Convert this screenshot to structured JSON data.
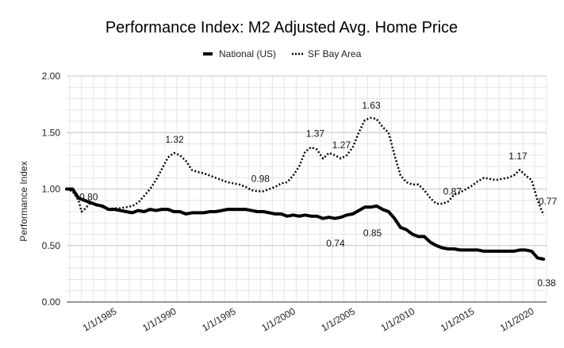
{
  "chart_data": {
    "type": "line",
    "title": "Performance Index: M2 Adjusted Avg. Home Price",
    "xlabel": "",
    "ylabel": "Performance Index",
    "ylim": [
      0,
      2
    ],
    "yticks": [
      "0.00",
      "0.50",
      "1.00",
      "1.50",
      "2.00"
    ],
    "ytick_values": [
      0,
      0.5,
      1,
      1.5,
      2
    ],
    "xlim": [
      1980.75,
      2021
    ],
    "xticks": [
      "1/1/1985",
      "1/1/1990",
      "1/1/1995",
      "1/1/2000",
      "1/1/2005",
      "1/1/2010",
      "1/1/2015",
      "1/1/2020"
    ],
    "xtick_values": [
      1985,
      1990,
      1995,
      2000,
      2005,
      2010,
      2015,
      2020
    ],
    "grid": true,
    "legend_position": "top-center",
    "series": [
      {
        "name": "National (US)",
        "style": "solid",
        "color": "#000000",
        "x": [
          1980.75,
          1981.25,
          1981.75,
          1982.25,
          1982.75,
          1983.25,
          1983.75,
          1984.25,
          1984.75,
          1985.25,
          1985.75,
          1986.25,
          1986.75,
          1987.25,
          1987.75,
          1988.25,
          1988.75,
          1989.25,
          1989.75,
          1990.25,
          1990.75,
          1991.25,
          1991.75,
          1992.25,
          1992.75,
          1993.25,
          1993.75,
          1994.25,
          1994.75,
          1995.25,
          1995.75,
          1996.25,
          1996.75,
          1997.25,
          1997.75,
          1998.25,
          1998.75,
          1999.25,
          1999.75,
          2000.25,
          2000.75,
          2001.25,
          2001.75,
          2002.25,
          2002.75,
          2003.25,
          2003.75,
          2004.25,
          2004.75,
          2005.25,
          2005.75,
          2006.25,
          2006.75,
          2007.25,
          2007.75,
          2008.25,
          2008.75,
          2009.25,
          2009.75,
          2010.25,
          2010.75,
          2011.25,
          2011.75,
          2012.25,
          2012.75,
          2013.25,
          2013.75,
          2014.25,
          2014.75,
          2015.25,
          2015.75,
          2016.25,
          2016.75,
          2017.25,
          2017.75,
          2018.25,
          2018.75,
          2019.25,
          2019.75,
          2020.25,
          2020.75
        ],
        "values": [
          1.0,
          1.0,
          0.92,
          0.9,
          0.88,
          0.86,
          0.85,
          0.82,
          0.82,
          0.81,
          0.8,
          0.79,
          0.81,
          0.8,
          0.82,
          0.81,
          0.82,
          0.82,
          0.8,
          0.8,
          0.78,
          0.79,
          0.79,
          0.79,
          0.8,
          0.8,
          0.81,
          0.82,
          0.82,
          0.82,
          0.82,
          0.81,
          0.8,
          0.8,
          0.79,
          0.78,
          0.78,
          0.76,
          0.77,
          0.76,
          0.77,
          0.76,
          0.76,
          0.74,
          0.75,
          0.74,
          0.75,
          0.77,
          0.78,
          0.81,
          0.84,
          0.84,
          0.85,
          0.82,
          0.8,
          0.74,
          0.66,
          0.64,
          0.6,
          0.58,
          0.58,
          0.53,
          0.5,
          0.48,
          0.47,
          0.47,
          0.46,
          0.46,
          0.46,
          0.46,
          0.45,
          0.45,
          0.45,
          0.45,
          0.45,
          0.45,
          0.46,
          0.46,
          0.45,
          0.39,
          0.38
        ]
      },
      {
        "name": "SF Bay Area",
        "style": "dotted",
        "color": "#000000",
        "x": [
          1980.75,
          1981.25,
          1981.75,
          1982.0,
          1982.25,
          1982.75,
          1983.25,
          1983.75,
          1984.25,
          1984.75,
          1985.25,
          1985.75,
          1986.25,
          1986.75,
          1987.25,
          1987.75,
          1988.25,
          1988.75,
          1989.25,
          1989.75,
          1990.25,
          1990.75,
          1991.25,
          1991.75,
          1992.25,
          1992.75,
          1993.25,
          1993.75,
          1994.25,
          1994.75,
          1995.25,
          1995.75,
          1996.25,
          1996.75,
          1997.25,
          1997.75,
          1998.25,
          1998.75,
          1999.25,
          1999.75,
          2000.25,
          2000.75,
          2001.25,
          2001.75,
          2002.25,
          2002.75,
          2003.25,
          2003.75,
          2004.25,
          2004.75,
          2005.25,
          2005.75,
          2006.25,
          2006.75,
          2007.25,
          2007.75,
          2008.25,
          2008.75,
          2009.25,
          2009.75,
          2010.25,
          2010.75,
          2011.25,
          2011.75,
          2012.25,
          2012.75,
          2013.25,
          2013.75,
          2014.25,
          2014.75,
          2015.25,
          2015.75,
          2016.25,
          2016.75,
          2017.25,
          2017.75,
          2018.25,
          2018.75,
          2019.25,
          2019.75,
          2020.25,
          2020.75
        ],
        "values": [
          1.0,
          0.98,
          0.9,
          0.8,
          0.82,
          0.88,
          0.86,
          0.84,
          0.82,
          0.83,
          0.83,
          0.84,
          0.85,
          0.88,
          0.94,
          1.0,
          1.08,
          1.18,
          1.28,
          1.32,
          1.3,
          1.25,
          1.17,
          1.15,
          1.14,
          1.12,
          1.1,
          1.08,
          1.06,
          1.05,
          1.04,
          1.02,
          0.99,
          0.98,
          0.98,
          1.0,
          1.02,
          1.05,
          1.06,
          1.12,
          1.2,
          1.33,
          1.37,
          1.35,
          1.27,
          1.32,
          1.3,
          1.27,
          1.3,
          1.37,
          1.5,
          1.61,
          1.63,
          1.62,
          1.55,
          1.5,
          1.3,
          1.12,
          1.06,
          1.04,
          1.04,
          0.99,
          0.92,
          0.87,
          0.87,
          0.89,
          0.95,
          0.97,
          1.0,
          1.03,
          1.07,
          1.1,
          1.09,
          1.08,
          1.09,
          1.1,
          1.12,
          1.17,
          1.12,
          1.08,
          0.9,
          0.77
        ]
      }
    ],
    "annotations": [
      {
        "text": "0.80",
        "x": 1982.6,
        "y": 0.93
      },
      {
        "text": "1.32",
        "x": 1989.8,
        "y": 1.44
      },
      {
        "text": "0.98",
        "x": 1997.0,
        "y": 1.09
      },
      {
        "text": "1.37",
        "x": 2001.6,
        "y": 1.49
      },
      {
        "text": "1.27",
        "x": 2003.8,
        "y": 1.39
      },
      {
        "text": "1.63",
        "x": 2006.3,
        "y": 1.74
      },
      {
        "text": "0.74",
        "x": 2003.3,
        "y": 0.52
      },
      {
        "text": "0.85",
        "x": 2006.4,
        "y": 0.61
      },
      {
        "text": "0.87",
        "x": 2013.1,
        "y": 0.98
      },
      {
        "text": "1.17",
        "x": 2018.6,
        "y": 1.29
      },
      {
        "text": "0.77",
        "x": 2021.1,
        "y": 0.89
      },
      {
        "text": "0.38",
        "x": 2021.0,
        "y": 0.17
      }
    ]
  }
}
